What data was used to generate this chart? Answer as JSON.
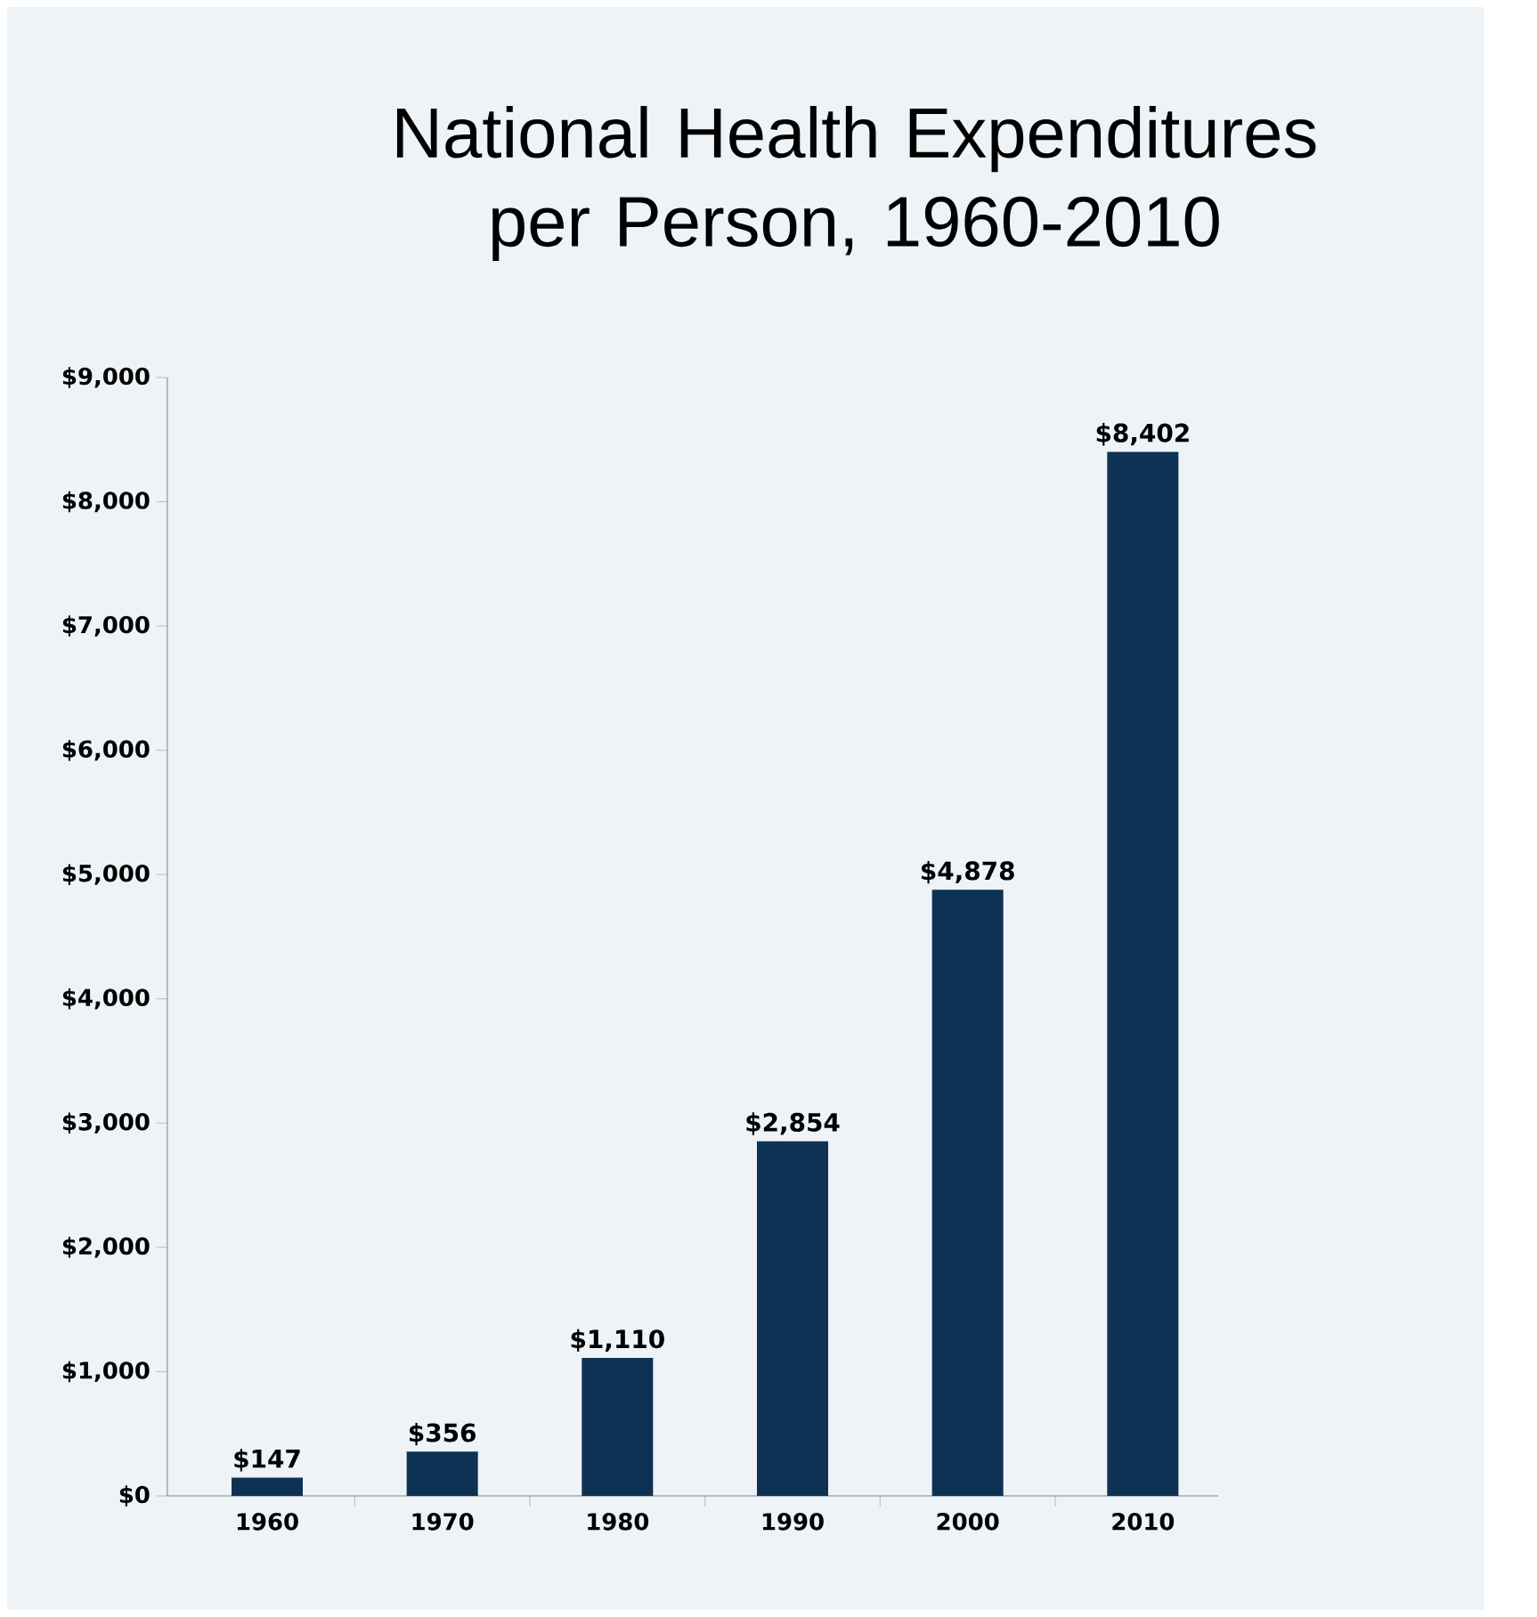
{
  "chart_data": {
    "type": "bar",
    "title": "National Health Expenditures per Person, 1960-2010",
    "categories": [
      "1960",
      "1970",
      "1980",
      "1990",
      "2000",
      "2010"
    ],
    "values": [
      147,
      356,
      1110,
      2854,
      4878,
      8402
    ],
    "value_labels": [
      "$147",
      "$356",
      "$1,110",
      "$2,854",
      "$4,878",
      "$8,402"
    ],
    "color": "#0d3253",
    "ylim": [
      0,
      9000
    ],
    "yticks": [
      {
        "value": 0,
        "label": "$0"
      },
      {
        "value": 1000,
        "label": "$1,000"
      },
      {
        "value": 2000,
        "label": "$2,000"
      },
      {
        "value": 3000,
        "label": "$3,000"
      },
      {
        "value": 4000,
        "label": "$4,000"
      },
      {
        "value": 5000,
        "label": "$5,000"
      },
      {
        "value": 6000,
        "label": "$6,000"
      },
      {
        "value": 7000,
        "label": "$7,000"
      },
      {
        "value": 8000,
        "label": "$8,000"
      },
      {
        "value": 9000,
        "label": "$9,000"
      }
    ],
    "grid": false
  }
}
